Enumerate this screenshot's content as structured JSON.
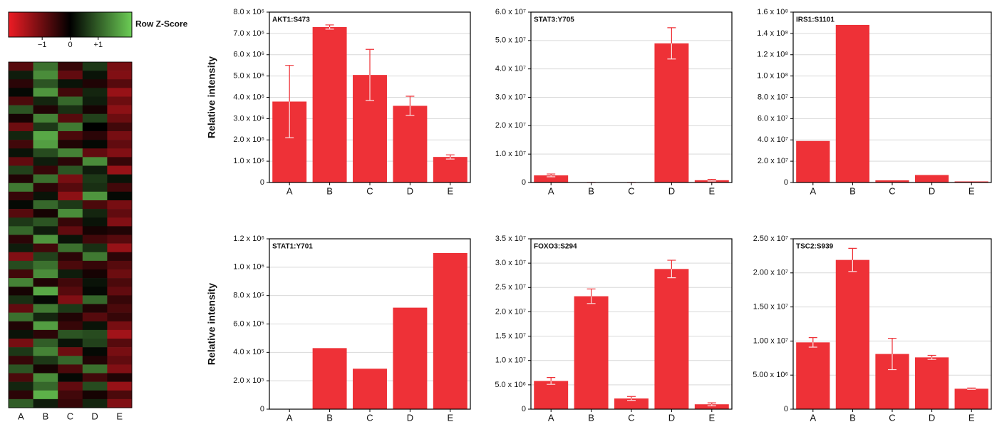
{
  "chart_data": [
    {
      "type": "heatmap",
      "columns": [
        "A",
        "B",
        "C",
        "D",
        "E"
      ],
      "values": [
        [
          -0.8,
          1.2,
          -0.5,
          0.6,
          -1.1
        ],
        [
          0.3,
          1.5,
          -0.9,
          0.2,
          -1.2
        ],
        [
          -0.4,
          0.9,
          0.2,
          -0.3,
          -0.8
        ],
        [
          0.1,
          1.6,
          -0.6,
          0.4,
          -1.4
        ],
        [
          -0.7,
          0.4,
          1.1,
          0.3,
          -1.0
        ],
        [
          0.9,
          -0.3,
          0.5,
          -0.2,
          -1.3
        ],
        [
          -0.2,
          1.4,
          -0.8,
          0.7,
          -1.0
        ],
        [
          -1.0,
          0.6,
          1.3,
          0.0,
          -0.6
        ],
        [
          0.4,
          1.8,
          -0.7,
          -0.4,
          -1.1
        ],
        [
          -0.6,
          1.7,
          -0.3,
          0.1,
          -0.9
        ],
        [
          0.2,
          0.8,
          1.4,
          -0.9,
          -1.2
        ],
        [
          -0.9,
          0.3,
          -0.4,
          1.5,
          -0.5
        ],
        [
          0.7,
          -0.5,
          0.9,
          0.3,
          -1.4
        ],
        [
          -0.3,
          1.2,
          -1.1,
          0.6,
          0.2
        ],
        [
          1.3,
          -0.4,
          -0.8,
          0.5,
          -0.6
        ],
        [
          -0.5,
          0.2,
          -1.3,
          1.6,
          0.1
        ],
        [
          0.1,
          1.1,
          0.6,
          -0.7,
          -1.1
        ],
        [
          -0.8,
          -0.2,
          1.5,
          0.4,
          -0.9
        ],
        [
          0.6,
          0.9,
          -0.5,
          0.2,
          -1.2
        ],
        [
          1.1,
          0.3,
          -0.9,
          -0.2,
          -0.3
        ],
        [
          -0.4,
          1.6,
          0.2,
          -0.6,
          -0.8
        ],
        [
          0.3,
          -0.6,
          1.2,
          0.5,
          -1.4
        ],
        [
          -1.2,
          0.7,
          -0.4,
          1.3,
          -0.4
        ],
        [
          0.8,
          1.2,
          -0.7,
          -0.5,
          -0.8
        ],
        [
          -0.6,
          1.5,
          0.3,
          -0.2,
          -1.0
        ],
        [
          1.4,
          -0.3,
          -0.6,
          0.2,
          -0.7
        ],
        [
          -0.2,
          1.8,
          -0.8,
          0.1,
          -0.9
        ],
        [
          0.5,
          0.1,
          -1.2,
          1.1,
          -0.5
        ],
        [
          -0.9,
          1.3,
          0.6,
          -0.3,
          -0.7
        ],
        [
          1.2,
          0.4,
          -0.3,
          -0.8,
          -0.5
        ],
        [
          -0.3,
          1.7,
          -0.5,
          0.2,
          -1.1
        ],
        [
          0.2,
          -0.4,
          0.9,
          0.8,
          -1.5
        ],
        [
          -1.1,
          1.0,
          0.2,
          0.7,
          -0.8
        ],
        [
          0.6,
          1.4,
          -1.0,
          0.1,
          -1.1
        ],
        [
          -0.5,
          0.6,
          1.1,
          -0.3,
          -0.9
        ],
        [
          0.9,
          -0.2,
          -0.7,
          1.2,
          -1.2
        ],
        [
          -0.7,
          1.5,
          0.1,
          -0.6,
          -0.3
        ],
        [
          0.4,
          1.1,
          -0.9,
          0.8,
          -1.4
        ],
        [
          -0.4,
          1.9,
          -0.6,
          -0.2,
          -0.7
        ],
        [
          1.0,
          0.3,
          -0.5,
          0.4,
          -1.2
        ]
      ],
      "colorbar": {
        "label": "Row Z-Score",
        "zlim": [
          -2.2,
          2.2
        ],
        "ticks": [
          {
            "value": -1,
            "label": "−1"
          },
          0,
          {
            "value": 1,
            "label": "+1"
          }
        ],
        "colors": [
          "#ed1c24",
          "#000000",
          "#6ccd55"
        ]
      }
    },
    {
      "type": "bar",
      "title": "AKT1:S473",
      "ylabel": "Relative intensity",
      "categories": [
        "A",
        "B",
        "C",
        "D",
        "E"
      ],
      "values": [
        3800000,
        7300000,
        5050000,
        3600000,
        1200000
      ],
      "errors": [
        1700000,
        100000,
        1200000,
        450000,
        100000
      ],
      "color": "#ee3137",
      "ylim": [
        0,
        8000000
      ],
      "grid": true,
      "yticks": [
        0,
        {
          "value": 1000000,
          "label": "1.0 x 10⁶"
        },
        {
          "value": 2000000,
          "label": "2.0 x 10⁶"
        },
        {
          "value": 3000000,
          "label": "3.0 x 10⁶"
        },
        {
          "value": 4000000,
          "label": "4.0 x 10⁶"
        },
        {
          "value": 5000000,
          "label": "5.0 x 10⁶"
        },
        {
          "value": 6000000,
          "label": "6.0 x 10⁶"
        },
        {
          "value": 7000000,
          "label": "7.0 x 10⁶"
        },
        {
          "value": 8000000,
          "label": "8.0 x 10⁶"
        }
      ]
    },
    {
      "type": "bar",
      "title": "STAT3:Y705",
      "categories": [
        "A",
        "B",
        "C",
        "D",
        "E"
      ],
      "values": [
        2500000,
        0,
        0,
        49000000,
        800000
      ],
      "errors": [
        500000,
        0,
        0,
        5500000,
        300000
      ],
      "color": "#ee3137",
      "ylim": [
        0,
        60000000
      ],
      "grid": true,
      "yticks": [
        0,
        {
          "value": 10000000,
          "label": "1.0 x 10⁷"
        },
        {
          "value": 20000000,
          "label": "2.0 x 10⁷"
        },
        {
          "value": 30000000,
          "label": "3.0 x 10⁷"
        },
        {
          "value": 40000000,
          "label": "4.0 x 10⁷"
        },
        {
          "value": 50000000,
          "label": "5.0 x 10⁷"
        },
        {
          "value": 60000000,
          "label": "6.0 x 10⁷"
        }
      ]
    },
    {
      "type": "bar",
      "title": "IRS1:S1101",
      "categories": [
        "A",
        "B",
        "C",
        "D",
        "E"
      ],
      "values": [
        39000000,
        148000000,
        2000000,
        7000000,
        1000000
      ],
      "color": "#ee3137",
      "ylim": [
        0,
        160000000
      ],
      "grid": true,
      "yticks": [
        0,
        {
          "value": 20000000,
          "label": "2.0 x 10⁷"
        },
        {
          "value": 40000000,
          "label": "4.0 x 10⁷"
        },
        {
          "value": 60000000,
          "label": "6.0 x 10⁷"
        },
        {
          "value": 80000000,
          "label": "8.0 x 10⁷"
        },
        {
          "value": 100000000,
          "label": "1.0 x 10⁸"
        },
        {
          "value": 120000000,
          "label": "1.2 x 10⁸"
        },
        {
          "value": 140000000,
          "label": "1.4 x 10⁸"
        },
        {
          "value": 160000000,
          "label": "1.6 x 10⁸"
        }
      ]
    },
    {
      "type": "bar",
      "title": "STAT1:Y701",
      "ylabel": "Relative intensity",
      "categories": [
        "A",
        "B",
        "C",
        "D",
        "E"
      ],
      "values": [
        0,
        430000,
        285000,
        715000,
        1100000
      ],
      "color": "#ee3137",
      "ylim": [
        0,
        1200000
      ],
      "grid": true,
      "yticks": [
        0,
        {
          "value": 200000,
          "label": "2.0 x 10⁵"
        },
        {
          "value": 400000,
          "label": "4.0 x 10⁵"
        },
        {
          "value": 600000,
          "label": "6.0 x 10⁵"
        },
        {
          "value": 800000,
          "label": "8.0 x 10⁵"
        },
        {
          "value": 1000000,
          "label": "1.0 x 10⁶"
        },
        {
          "value": 1200000,
          "label": "1.2 x 10⁶"
        }
      ]
    },
    {
      "type": "bar",
      "title": "FOXO3:S294",
      "categories": [
        "A",
        "B",
        "C",
        "D",
        "E"
      ],
      "values": [
        5800000,
        23200000,
        2200000,
        28800000,
        1000000
      ],
      "errors": [
        700000,
        1500000,
        400000,
        1800000,
        300000
      ],
      "color": "#ee3137",
      "ylim": [
        0,
        35000000
      ],
      "grid": true,
      "yticks": [
        0,
        {
          "value": 5000000,
          "label": "5.0 x 10⁶"
        },
        {
          "value": 10000000,
          "label": "1.0 x 10⁷"
        },
        {
          "value": 15000000,
          "label": "1.5 x 10⁷"
        },
        {
          "value": 20000000,
          "label": "2.0 x 10⁷"
        },
        {
          "value": 25000000,
          "label": "2.5 x 10⁷"
        },
        {
          "value": 30000000,
          "label": "3.0 x 10⁷"
        },
        {
          "value": 35000000,
          "label": "3.5 x 10⁷"
        }
      ]
    },
    {
      "type": "bar",
      "title": "TSC2:S939",
      "categories": [
        "A",
        "B",
        "C",
        "D",
        "E"
      ],
      "values": [
        9800000,
        21900000,
        8100000,
        7600000,
        3000000
      ],
      "errors": [
        700000,
        1700000,
        2300000,
        300000,
        100000
      ],
      "color": "#ee3137",
      "ylim": [
        0,
        25000000
      ],
      "grid": true,
      "yticks": [
        0,
        {
          "value": 5000000,
          "label": "5.00 x 10⁶"
        },
        {
          "value": 10000000,
          "label": "1.00 x 10⁷"
        },
        {
          "value": 15000000,
          "label": "1.50 x 10⁷"
        },
        {
          "value": 20000000,
          "label": "2.00 x 10⁷"
        },
        {
          "value": 25000000,
          "label": "2.50 x 10⁷"
        }
      ]
    }
  ]
}
